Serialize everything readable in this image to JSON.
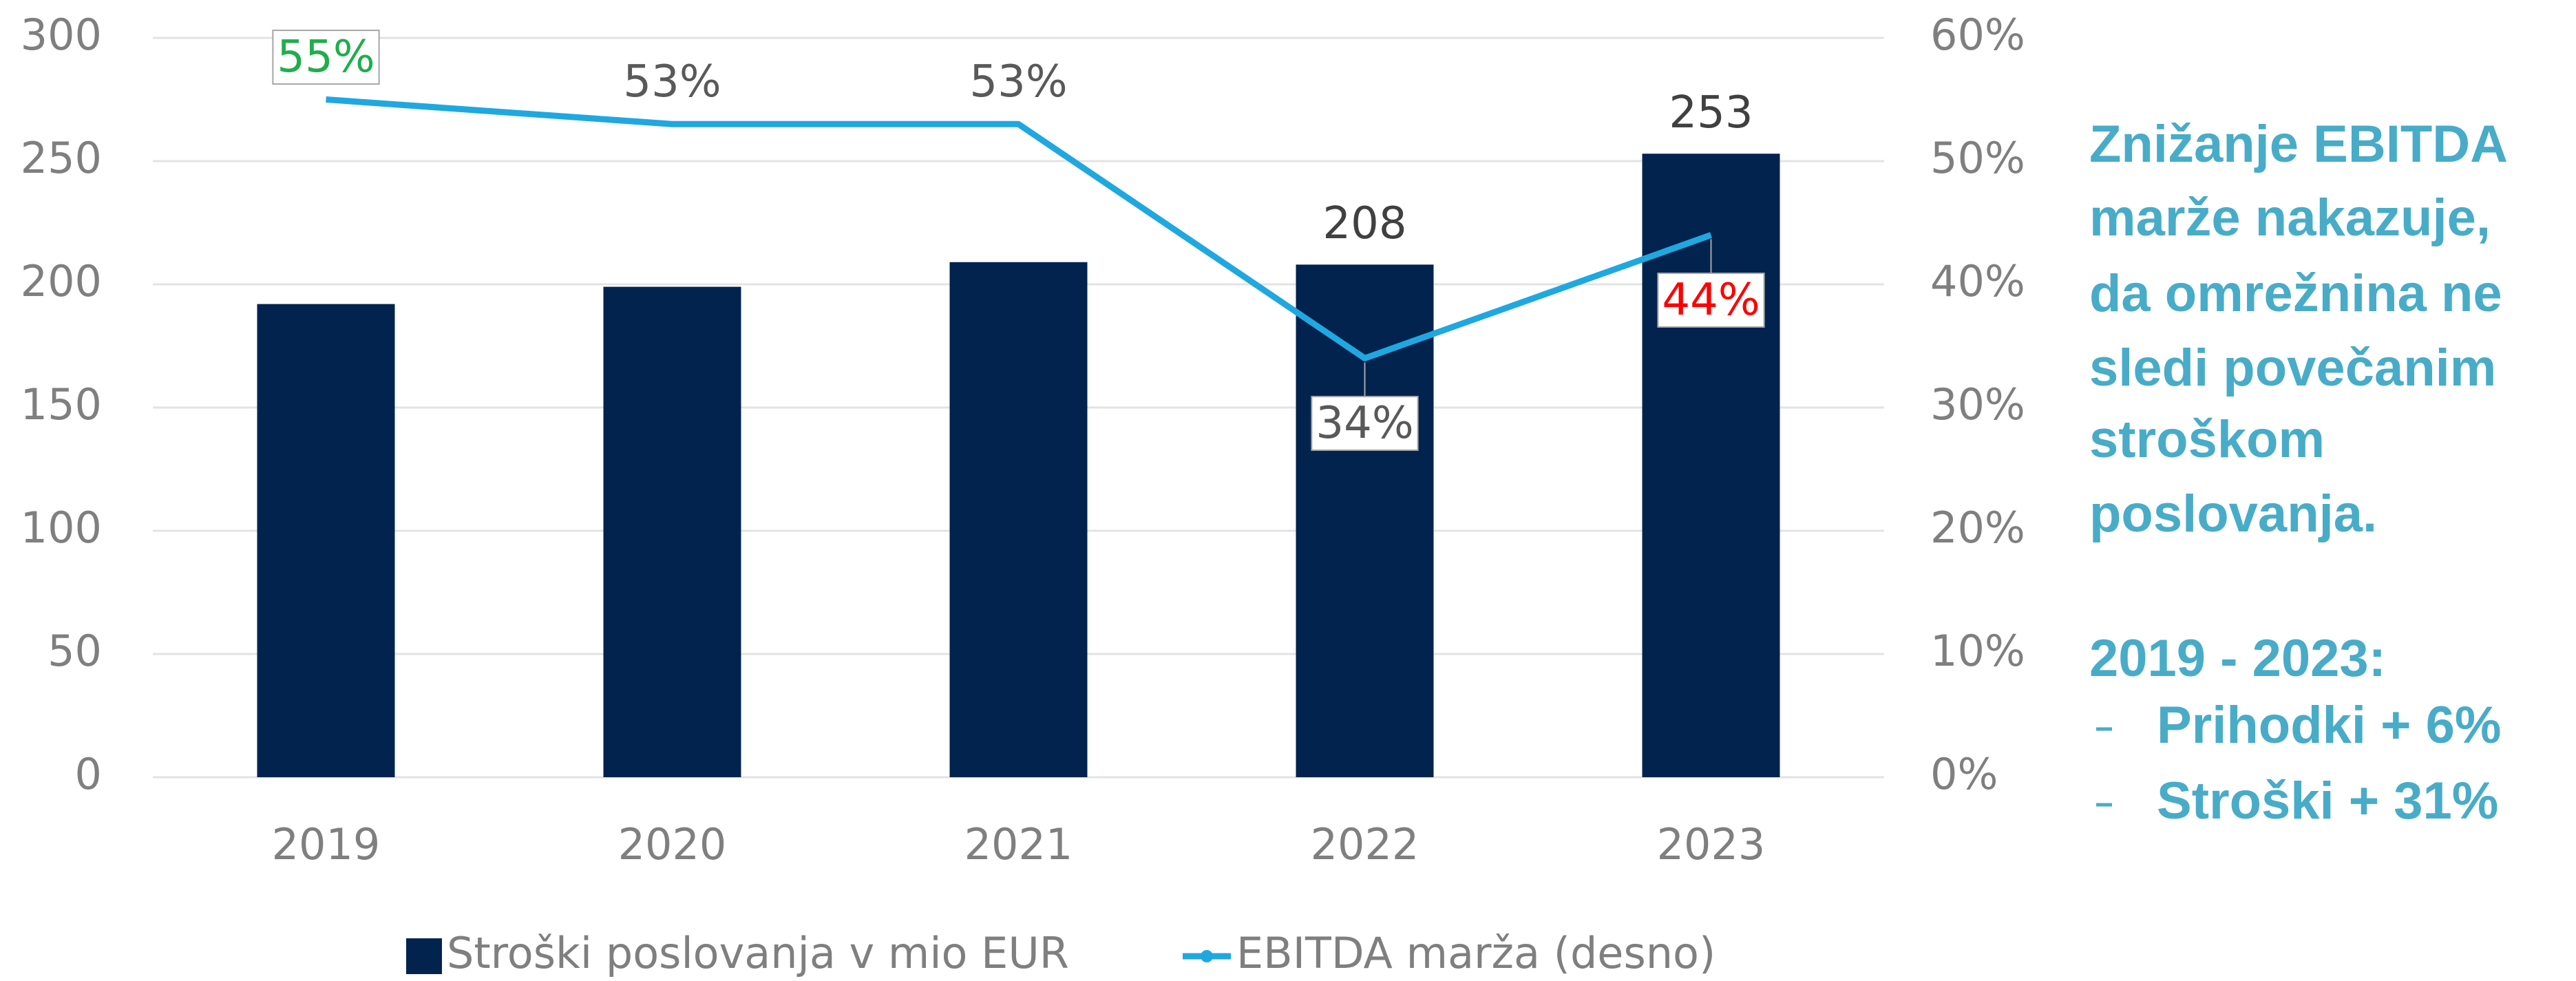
{
  "chart_data": {
    "type": "bar",
    "categories": [
      "2019",
      "2020",
      "2021",
      "2022",
      "2023"
    ],
    "series": [
      {
        "name": "Stroški poslovanja v mio EUR",
        "type": "bar",
        "color": "#03234f",
        "values": [
          192,
          199,
          209,
          208,
          253
        ],
        "value_labels": [
          null,
          null,
          null,
          "208",
          "253"
        ],
        "value_label_colors": [
          "#404040",
          "#404040",
          "#404040",
          "#404040",
          "#404040"
        ]
      },
      {
        "name": "EBITDA marža (desno)",
        "type": "line",
        "axis": "y2",
        "color": "#1fa8e0",
        "values": [
          55,
          53,
          53,
          34,
          44
        ],
        "value_labels": [
          "55%",
          "53%",
          "53%",
          "34%",
          "44%"
        ],
        "value_label_colors": [
          "#1fae4c",
          "#595959",
          "#595959",
          "#595959",
          "#ff0000"
        ],
        "value_label_positions": [
          "above",
          "above",
          "above",
          "below",
          "below"
        ],
        "value_label_boxes": [
          true,
          false,
          false,
          true,
          true
        ]
      }
    ],
    "ylim": [
      0,
      300
    ],
    "yticks": [
      0,
      50,
      100,
      150,
      200,
      250,
      300
    ],
    "y2lim": [
      0,
      60
    ],
    "y2ticks": [
      {
        "value": 0,
        "label": "0%"
      },
      {
        "value": 10,
        "label": "10%"
      },
      {
        "value": 20,
        "label": "20%"
      },
      {
        "value": 30,
        "label": "30%"
      },
      {
        "value": 40,
        "label": "40%"
      },
      {
        "value": 50,
        "label": "50%"
      },
      {
        "value": 60,
        "label": "60%"
      }
    ],
    "grid": true,
    "legend": "bottom",
    "annotation": {
      "lines": [
        "Znižanje EBITDA",
        "marže nakazuje,",
        "da omrežnina ne",
        "sledi povečanim",
        "stroškom",
        "poslovanja."
      ],
      "period": "2019 - 2023:",
      "items": [
        "Prihodki + 6%",
        "Stroški + 31%"
      ],
      "color": "#48acc8"
    }
  }
}
